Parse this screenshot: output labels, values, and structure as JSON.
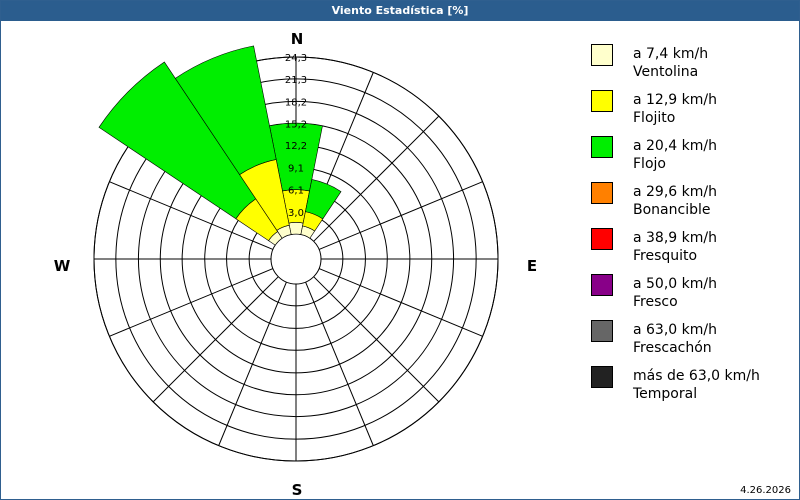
{
  "window": {
    "title": "Viento Estadística [%]"
  },
  "footer": {
    "date": "4.26.2026"
  },
  "compass": {
    "n": "N",
    "e": "E",
    "s": "S",
    "w": "W"
  },
  "legend": [
    {
      "speed": "a 7,4 km/h",
      "name": "Ventolina",
      "color": "#ffffcc"
    },
    {
      "speed": "a 12,9 km/h",
      "name": "Flojito",
      "color": "#ffff00"
    },
    {
      "speed": "a 20,4 km/h",
      "name": "Flojo",
      "color": "#00ee00"
    },
    {
      "speed": "a 29,6 km/h",
      "name": "Bonancible",
      "color": "#ff8000"
    },
    {
      "speed": "a 38,9 km/h",
      "name": "Fresquito",
      "color": "#ff0000"
    },
    {
      "speed": "a 50,0 km/h",
      "name": "Fresco",
      "color": "#880088"
    },
    {
      "speed": "a 63,0 km/h",
      "name": "Frescachón",
      "color": "#666666"
    },
    {
      "speed": "más de 63,0 km/h",
      "name": "Temporal",
      "color": "#222222"
    }
  ],
  "chart_data": {
    "type": "wind-rose",
    "title": "Viento Estadística [%]",
    "rmax": 24.3,
    "ticks": [
      "24,3",
      "21,3",
      "18,2",
      "15,2",
      "12,2",
      "9,1",
      "6,1",
      "3,0"
    ],
    "tick_values": [
      24.3,
      21.3,
      18.2,
      15.2,
      12.2,
      9.1,
      6.1,
      3.0
    ],
    "directions": [
      0,
      22.5,
      315,
      337.5
    ],
    "direction_unit": "degrees clockwise from N",
    "series": [
      {
        "name": "a 7,4 km/h",
        "values": [
          1.6,
          1.2,
          1.1,
          1.3
        ]
      },
      {
        "name": "a 12,9 km/h",
        "values": [
          4.5,
          2.0,
          5.4,
          9.2
        ]
      },
      {
        "name": "a 20,4 km/h",
        "values": [
          9.1,
          4.5,
          22.6,
          15.9
        ]
      }
    ]
  }
}
